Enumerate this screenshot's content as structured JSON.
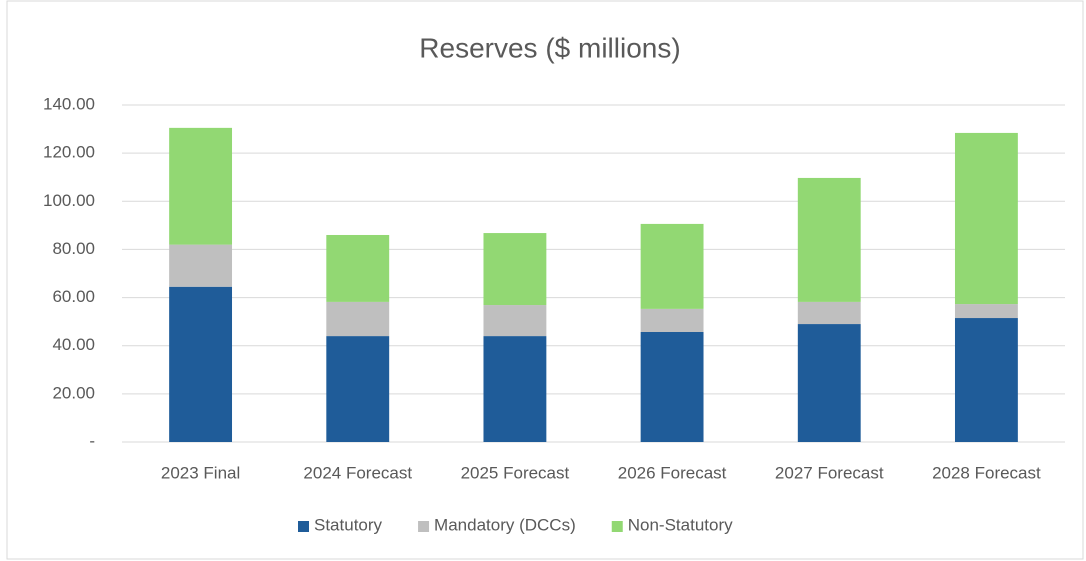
{
  "chart_data": {
    "type": "stacked_bar",
    "title": "Reserves ($ millions)",
    "categories": [
      "2023 Final",
      "2024 Forecast",
      "2025 Forecast",
      "2026 Forecast",
      "2027 Forecast",
      "2028 Forecast"
    ],
    "series": [
      {
        "name": "Statutory",
        "color": "#1f5c99",
        "values": [
          64.5,
          44.0,
          44.0,
          45.7,
          49.0,
          51.5
        ]
      },
      {
        "name": "Mandatory (DCCs)",
        "color": "#bfbfbf",
        "values": [
          17.5,
          14.2,
          12.9,
          9.6,
          9.2,
          5.8
        ]
      },
      {
        "name": "Non-Statutory",
        "color": "#92d873",
        "values": [
          48.5,
          27.8,
          29.9,
          35.3,
          51.5,
          71.1
        ]
      }
    ],
    "ylim": [
      0,
      140
    ],
    "yticks": [
      {
        "value": 0,
        "label": "-"
      },
      {
        "value": 20,
        "label": "20.00"
      },
      {
        "value": 40,
        "label": "40.00"
      },
      {
        "value": 60,
        "label": "60.00"
      },
      {
        "value": 80,
        "label": "80.00"
      },
      {
        "value": 100,
        "label": "100.00"
      },
      {
        "value": 120,
        "label": "120.00"
      },
      {
        "value": 140,
        "label": "140.00"
      }
    ],
    "grid": true,
    "legend": "bottom"
  }
}
